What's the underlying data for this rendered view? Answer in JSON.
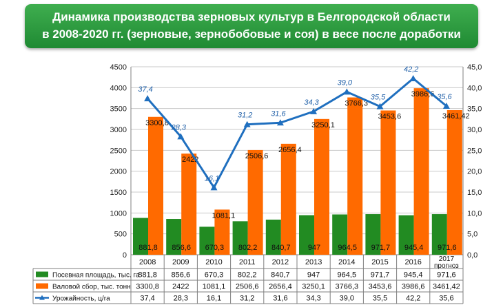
{
  "header": {
    "title_line1": "Динамика производства зерновых культур в Белгородской области",
    "title_line2": "в 2008-2020 гг.  (зерновые, зернобобовые и соя) в весе после доработки"
  },
  "chart_data": {
    "type": "bar",
    "categories": [
      "2008",
      "2009",
      "2010",
      "2011",
      "2012",
      "2013",
      "2014",
      "2015",
      "2016",
      "2017 прогноз"
    ],
    "series": [
      {
        "name": "Посевная площадь, тыс. га",
        "type": "bar",
        "axis": "left",
        "color": "#228b22",
        "values": [
          881.8,
          856.6,
          670.3,
          802.2,
          840.7,
          947,
          964.5,
          971.7,
          945.4,
          971.6
        ],
        "labels": [
          "881,8",
          "856,6",
          "670,3",
          "802,2",
          "840,7",
          "947",
          "964,5",
          "971,7",
          "945,4",
          "971,6"
        ]
      },
      {
        "name": "Валовой сбор, тыс. тонн",
        "type": "bar",
        "axis": "left",
        "color": "#ff6a00",
        "values": [
          3300.8,
          2422,
          1081.1,
          2506.6,
          2656.4,
          3250.1,
          3766.3,
          3453.6,
          3986.6,
          3461.42
        ],
        "labels": [
          "3300,8",
          "2422",
          "1081,1",
          "2506,6",
          "2656,4",
          "3250,1",
          "3766,3",
          "3453,6",
          "3986,6",
          "3461,42"
        ]
      },
      {
        "name": "Урожайность, ц/га",
        "type": "line",
        "axis": "right",
        "color": "#1f6fbf",
        "values": [
          37.4,
          28.3,
          16.1,
          31.2,
          31.6,
          34.3,
          39.0,
          35.5,
          42.2,
          35.6
        ],
        "labels": [
          "37,4",
          "28,3",
          "16,1",
          "31,2",
          "31,6",
          "34,3",
          "39,0",
          "35,5",
          "42,2",
          "35,6"
        ]
      }
    ],
    "y_left": {
      "min": 0,
      "max": 4500,
      "step": 500,
      "tick_labels": [
        "0",
        "500",
        "1000",
        "1500",
        "2000",
        "2500",
        "3000",
        "3500",
        "4000",
        "4500"
      ]
    },
    "y_right": {
      "min": 0,
      "max": 45,
      "step": 5,
      "tick_labels": [
        "0,0",
        "5,0",
        "10,0",
        "15,0",
        "20,0",
        "25,0",
        "30,0",
        "35,0",
        "40,0",
        "45,0"
      ]
    },
    "grid": true,
    "legend": "data-table-below"
  }
}
